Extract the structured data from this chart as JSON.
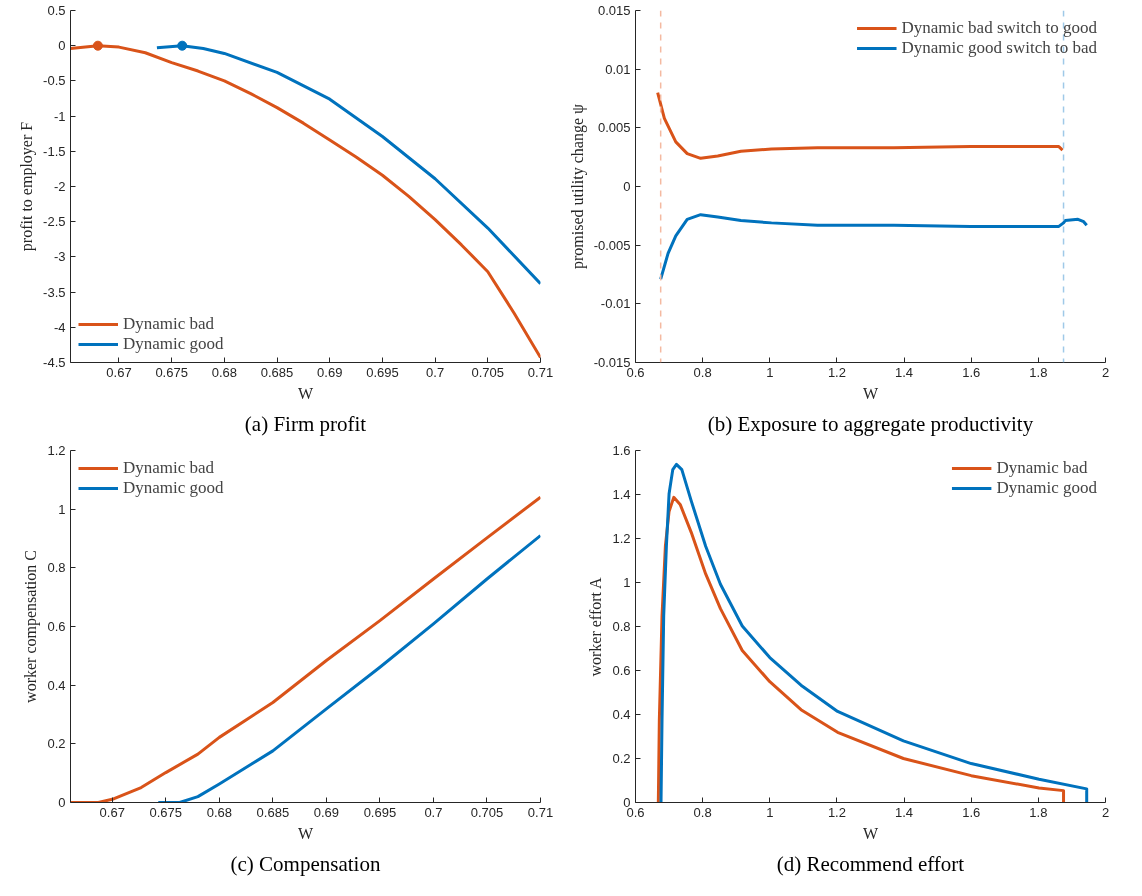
{
  "chart_data": [
    {
      "type": "line",
      "title": "(a) Firm profit",
      "xlabel": "W",
      "ylabel": "profit to employer F",
      "xlim": [
        0.6654,
        0.71
      ],
      "xticks": [
        0.67,
        0.675,
        0.68,
        0.685,
        0.69,
        0.695,
        0.7,
        0.705,
        0.71
      ],
      "ylim": [
        -4.5,
        0.5
      ],
      "yticks": [
        -4.5,
        -4,
        -3.5,
        -3,
        -2.5,
        -2,
        -1.5,
        -1,
        -0.5,
        0,
        0.5
      ],
      "grid": false,
      "legend": "bottom left",
      "series": [
        {
          "name": "Dynamic bad",
          "color": "#d95319",
          "x": [
            0.6654,
            0.668,
            0.67,
            0.6725,
            0.675,
            0.6775,
            0.68,
            0.6825,
            0.685,
            0.6875,
            0.69,
            0.6925,
            0.695,
            0.6975,
            0.7,
            0.7025,
            0.705,
            0.7075,
            0.71
          ],
          "values": [
            -0.04,
            0,
            -0.02,
            -0.1,
            -0.24,
            -0.36,
            -0.5,
            -0.68,
            -0.88,
            -1.1,
            -1.34,
            -1.58,
            -1.84,
            -2.14,
            -2.47,
            -2.83,
            -3.21,
            -3.8,
            -4.43
          ]
        },
        {
          "name": "Dynamic good",
          "color": "#0072bd",
          "x": [
            0.6736,
            0.676,
            0.678,
            0.68,
            0.685,
            0.69,
            0.695,
            0.7,
            0.705,
            0.71
          ],
          "values": [
            -0.03,
            0,
            -0.04,
            -0.11,
            -0.38,
            -0.76,
            -1.29,
            -1.89,
            -2.59,
            -3.38
          ]
        },
        {
          "type": "scatter",
          "marker": "circle",
          "color": "#d95319",
          "x": [
            0.668
          ],
          "values": [
            0
          ]
        },
        {
          "type": "scatter",
          "marker": "circle",
          "color": "#0072bd",
          "x": [
            0.676
          ],
          "values": [
            0
          ]
        }
      ]
    },
    {
      "type": "line",
      "title": "(b) Exposure to aggregate productivity",
      "xlabel": "W",
      "ylabel": "promised utility change ψ",
      "xlim": [
        0.6,
        2
      ],
      "xticks": [
        0.6,
        0.8,
        1,
        1.2,
        1.4,
        1.6,
        1.8,
        2
      ],
      "ylim": [
        -0.015,
        0.015
      ],
      "yticks": [
        -0.015,
        -0.01,
        -0.005,
        0,
        0.005,
        0.01,
        0.015
      ],
      "grid": false,
      "legend": "top right",
      "ref_lines": [
        {
          "axis": "x",
          "value": 0.675,
          "color": "#f4b9a0",
          "line_style": "dashed"
        },
        {
          "axis": "x",
          "value": 1.875,
          "color": "#9fc9e8",
          "line_style": "dashed"
        }
      ],
      "series": [
        {
          "name": "Dynamic bad switch to good",
          "color": "#d95319",
          "x": [
            0.666,
            0.686,
            0.72,
            0.754,
            0.794,
            0.845,
            0.914,
            1.005,
            1.142,
            1.37,
            1.598,
            1.861,
            1.872
          ],
          "values": [
            0.008,
            0.0058,
            0.0038,
            0.0028,
            0.0024,
            0.0026,
            0.003,
            0.0032,
            0.0033,
            0.0033,
            0.0034,
            0.0034,
            0.0031
          ]
        },
        {
          "name": "Dynamic good switch to bad",
          "color": "#0072bd",
          "x": [
            0.675,
            0.697,
            0.72,
            0.754,
            0.794,
            0.845,
            0.914,
            1.005,
            1.142,
            1.37,
            1.598,
            1.861,
            1.875,
            1.88,
            1.918,
            1.935,
            1.944
          ],
          "values": [
            -0.0079,
            -0.0057,
            -0.0042,
            -0.0028,
            -0.0024,
            -0.0026,
            -0.0029,
            -0.0031,
            -0.0033,
            -0.0033,
            -0.0034,
            -0.0034,
            -0.0031,
            -0.0029,
            -0.0028,
            -0.003,
            -0.0033
          ]
        }
      ]
    },
    {
      "type": "line",
      "title": "(c) Compensation",
      "xlabel": "W",
      "ylabel": "worker compensation C",
      "xlim": [
        0.6661,
        0.71
      ],
      "xticks": [
        0.67,
        0.675,
        0.68,
        0.685,
        0.69,
        0.695,
        0.7,
        0.705,
        0.71
      ],
      "ylim": [
        0,
        1.2
      ],
      "yticks": [
        0,
        0.2,
        0.4,
        0.6,
        0.8,
        1,
        1.2
      ],
      "grid": false,
      "legend": "top left",
      "series": [
        {
          "name": "Dynamic bad",
          "color": "#d95319",
          "x": [
            0.6661,
            0.6687,
            0.67,
            0.6727,
            0.675,
            0.678,
            0.68,
            0.685,
            0.69,
            0.695,
            0.7,
            0.705,
            0.71
          ],
          "values": [
            0,
            0,
            0.011,
            0.051,
            0.102,
            0.165,
            0.222,
            0.341,
            0.484,
            0.62,
            0.762,
            0.902,
            1.041
          ]
        },
        {
          "name": "Dynamic good",
          "color": "#0072bd",
          "x": [
            0.6743,
            0.6763,
            0.678,
            0.68,
            0.685,
            0.69,
            0.695,
            0.7,
            0.705,
            0.71
          ],
          "values": [
            0,
            0,
            0.02,
            0.063,
            0.176,
            0.319,
            0.461,
            0.609,
            0.762,
            0.91
          ]
        }
      ]
    },
    {
      "type": "line",
      "title": "(d) Recommend effort",
      "xlabel": "W",
      "ylabel": "worker effort A",
      "xlim": [
        0.6,
        2
      ],
      "xticks": [
        0.6,
        0.8,
        1,
        1.2,
        1.4,
        1.6,
        1.8,
        2
      ],
      "ylim": [
        0,
        1.6
      ],
      "yticks": [
        0,
        0.2,
        0.4,
        0.6,
        0.8,
        1,
        1.2,
        1.4,
        1.6
      ],
      "grid": false,
      "legend": "top right",
      "series": [
        {
          "name": "Dynamic bad",
          "color": "#d95319",
          "x": [
            0.668,
            0.671,
            0.679,
            0.689,
            0.7,
            0.714,
            0.733,
            0.766,
            0.809,
            0.853,
            0.918,
            1.0,
            1.093,
            1.202,
            1.398,
            1.6,
            1.802,
            1.875,
            1.875
          ],
          "values": [
            0,
            0.375,
            0.849,
            1.165,
            1.323,
            1.387,
            1.355,
            1.228,
            1.039,
            0.881,
            0.691,
            0.549,
            0.422,
            0.319,
            0.2,
            0.122,
            0.066,
            0.054,
            0
          ]
        },
        {
          "name": "Dynamic good",
          "color": "#0072bd",
          "x": [
            0.676,
            0.679,
            0.684,
            0.692,
            0.7,
            0.711,
            0.722,
            0.738,
            0.766,
            0.809,
            0.853,
            0.918,
            1.0,
            1.093,
            1.202,
            1.398,
            1.6,
            1.802,
            1.944,
            1.944
          ],
          "values": [
            0,
            0.375,
            0.849,
            1.165,
            1.403,
            1.513,
            1.537,
            1.513,
            1.371,
            1.165,
            0.992,
            0.802,
            0.659,
            0.533,
            0.414,
            0.28,
            0.177,
            0.106,
            0.062,
            0
          ]
        }
      ]
    }
  ]
}
